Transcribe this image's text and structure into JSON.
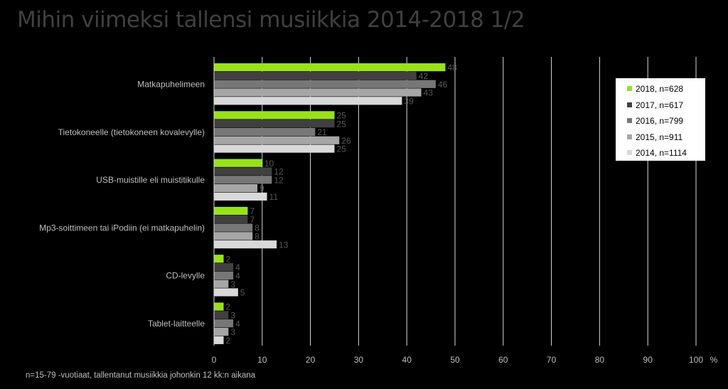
{
  "title": "Mihin viimeksi tallensi musiikkia 2014-2018  1/2",
  "footnote": "n=15-79 -vuotiaat, tallentanut musiikkia johonkin 12 kk:n aikana",
  "chart_data": {
    "type": "bar",
    "orientation": "horizontal",
    "categories": [
      "Matkapuhelimeen",
      "Tietokoneelle (tietokoneen kovalevylle)",
      "USB-muistille eli muistitikulle",
      "Mp3-soittimeen tai iPodiin (ei matkapuhelin)",
      "CD-levylle",
      "Tablet-laitteelle"
    ],
    "series": [
      {
        "name": "2018, n=628",
        "color": "#99e21a",
        "values": [
          48,
          25,
          10,
          7,
          2,
          2
        ]
      },
      {
        "name": "2017, n=617",
        "color": "#404040",
        "values": [
          42,
          25,
          12,
          7,
          4,
          3
        ]
      },
      {
        "name": "2016, n=799",
        "color": "#777777",
        "values": [
          46,
          21,
          12,
          8,
          4,
          4
        ]
      },
      {
        "name": "2015, n=911",
        "color": "#a6a6a6",
        "values": [
          43,
          26,
          9,
          8,
          3,
          3
        ]
      },
      {
        "name": "2014, n=1114",
        "color": "#d9d9d9",
        "values": [
          39,
          25,
          11,
          13,
          5,
          2
        ]
      }
    ],
    "xlim": [
      0,
      100
    ],
    "xticks": [
      "0",
      "10",
      "20",
      "30",
      "40",
      "50",
      "60",
      "70",
      "80",
      "90",
      "100"
    ],
    "xunit": "%",
    "grid": true,
    "legend": "top-right",
    "colors": {
      "label": "#bfbfbf",
      "value_label": "#595959",
      "grid": "#d9d9d9"
    }
  }
}
